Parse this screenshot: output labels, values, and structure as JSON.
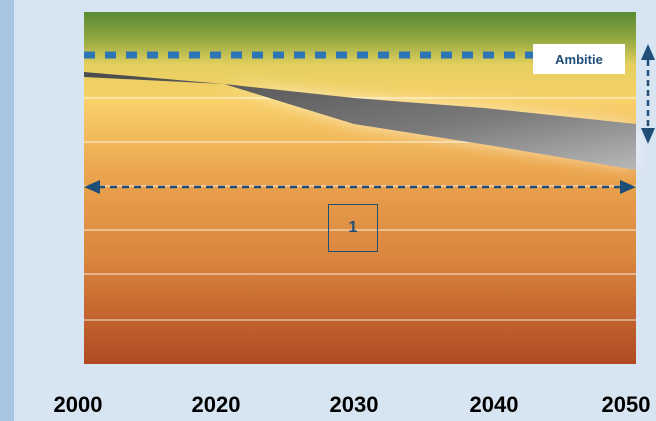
{
  "diagram": {
    "x_axis_labels": [
      "2000",
      "2020",
      "2030",
      "2040",
      "2050"
    ],
    "ambition_label": "Ambitie",
    "range_marker_label": "1"
  },
  "colors": {
    "dashed_lines": "#2e75b6",
    "label_text": "#1f4e79",
    "background": "#d7e4f1",
    "frame_left": "#a7c4e0"
  }
}
